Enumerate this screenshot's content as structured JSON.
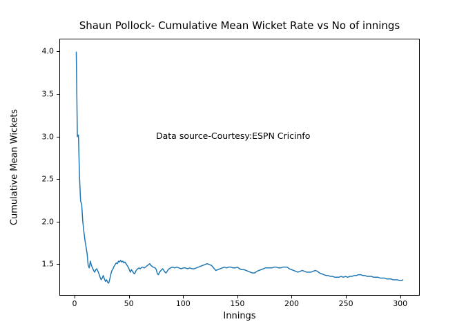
{
  "chart_data": {
    "type": "line",
    "title": "Shaun Pollock- Cumulative Mean Wicket Rate vs No of innings",
    "xlabel": "Innings",
    "ylabel": "Cumulative Mean Wickets",
    "annotation": "Data source-Courtesy:ESPN Cricinfo",
    "grid": false,
    "legend": null,
    "xlim": [
      -14,
      318
    ],
    "ylim": [
      1.13,
      4.15
    ],
    "x_ticks": [
      0,
      50,
      100,
      150,
      200,
      250,
      300
    ],
    "y_ticks": [
      1.5,
      2.0,
      2.5,
      3.0,
      3.5,
      4.0
    ],
    "line_color": "#1f77b4",
    "background_color": "#ffffff",
    "series": [
      {
        "name": "Cumulative Mean Wickets",
        "color": "#1f77b4",
        "points": [
          [
            1,
            4.0
          ],
          [
            2,
            3.0
          ],
          [
            3,
            3.02
          ],
          [
            4,
            2.52
          ],
          [
            5,
            2.24
          ],
          [
            6,
            2.2
          ],
          [
            7,
            2.0
          ],
          [
            8,
            1.88
          ],
          [
            9,
            1.78
          ],
          [
            10,
            1.7
          ],
          [
            11,
            1.62
          ],
          [
            12,
            1.48
          ],
          [
            13,
            1.45
          ],
          [
            14,
            1.53
          ],
          [
            15,
            1.48
          ],
          [
            16,
            1.45
          ],
          [
            17,
            1.42
          ],
          [
            18,
            1.4
          ],
          [
            19,
            1.43
          ],
          [
            20,
            1.44
          ],
          [
            21,
            1.41
          ],
          [
            22,
            1.38
          ],
          [
            23,
            1.34
          ],
          [
            24,
            1.31
          ],
          [
            25,
            1.33
          ],
          [
            26,
            1.36
          ],
          [
            27,
            1.32
          ],
          [
            28,
            1.29
          ],
          [
            29,
            1.31
          ],
          [
            30,
            1.28
          ],
          [
            31,
            1.27
          ],
          [
            32,
            1.32
          ],
          [
            33,
            1.38
          ],
          [
            34,
            1.42
          ],
          [
            35,
            1.44
          ],
          [
            36,
            1.47
          ],
          [
            37,
            1.49
          ],
          [
            38,
            1.51
          ],
          [
            39,
            1.5
          ],
          [
            40,
            1.53
          ],
          [
            41,
            1.52
          ],
          [
            42,
            1.54
          ],
          [
            43,
            1.52
          ],
          [
            44,
            1.53
          ],
          [
            45,
            1.51
          ],
          [
            46,
            1.52
          ],
          [
            47,
            1.5
          ],
          [
            48,
            1.48
          ],
          [
            49,
            1.46
          ],
          [
            50,
            1.43
          ],
          [
            51,
            1.4
          ],
          [
            52,
            1.43
          ],
          [
            53,
            1.41
          ],
          [
            54,
            1.39
          ],
          [
            55,
            1.38
          ],
          [
            56,
            1.41
          ],
          [
            57,
            1.43
          ],
          [
            58,
            1.44
          ],
          [
            59,
            1.45
          ],
          [
            60,
            1.44
          ],
          [
            62,
            1.46
          ],
          [
            64,
            1.45
          ],
          [
            66,
            1.47
          ],
          [
            68,
            1.49
          ],
          [
            69,
            1.5
          ],
          [
            70,
            1.48
          ],
          [
            72,
            1.46
          ],
          [
            74,
            1.45
          ],
          [
            75,
            1.43
          ],
          [
            76,
            1.38
          ],
          [
            77,
            1.37
          ],
          [
            78,
            1.4
          ],
          [
            80,
            1.43
          ],
          [
            81,
            1.44
          ],
          [
            82,
            1.42
          ],
          [
            83,
            1.4
          ],
          [
            84,
            1.39
          ],
          [
            85,
            1.41
          ],
          [
            86,
            1.43
          ],
          [
            88,
            1.45
          ],
          [
            90,
            1.46
          ],
          [
            92,
            1.45
          ],
          [
            94,
            1.46
          ],
          [
            96,
            1.45
          ],
          [
            98,
            1.44
          ],
          [
            100,
            1.45
          ],
          [
            102,
            1.45
          ],
          [
            104,
            1.44
          ],
          [
            106,
            1.45
          ],
          [
            108,
            1.44
          ],
          [
            110,
            1.44
          ],
          [
            112,
            1.45
          ],
          [
            114,
            1.46
          ],
          [
            116,
            1.47
          ],
          [
            118,
            1.48
          ],
          [
            120,
            1.49
          ],
          [
            122,
            1.5
          ],
          [
            124,
            1.49
          ],
          [
            126,
            1.48
          ],
          [
            128,
            1.45
          ],
          [
            130,
            1.42
          ],
          [
            132,
            1.43
          ],
          [
            134,
            1.44
          ],
          [
            136,
            1.45
          ],
          [
            138,
            1.46
          ],
          [
            140,
            1.45
          ],
          [
            142,
            1.46
          ],
          [
            144,
            1.46
          ],
          [
            146,
            1.45
          ],
          [
            148,
            1.45
          ],
          [
            150,
            1.46
          ],
          [
            152,
            1.44
          ],
          [
            154,
            1.43
          ],
          [
            156,
            1.43
          ],
          [
            158,
            1.42
          ],
          [
            160,
            1.41
          ],
          [
            162,
            1.4
          ],
          [
            164,
            1.39
          ],
          [
            166,
            1.39
          ],
          [
            168,
            1.41
          ],
          [
            170,
            1.42
          ],
          [
            172,
            1.43
          ],
          [
            174,
            1.44
          ],
          [
            176,
            1.45
          ],
          [
            178,
            1.45
          ],
          [
            180,
            1.45
          ],
          [
            182,
            1.45
          ],
          [
            184,
            1.46
          ],
          [
            186,
            1.46
          ],
          [
            188,
            1.45
          ],
          [
            190,
            1.45
          ],
          [
            192,
            1.46
          ],
          [
            194,
            1.46
          ],
          [
            196,
            1.46
          ],
          [
            198,
            1.44
          ],
          [
            200,
            1.43
          ],
          [
            202,
            1.42
          ],
          [
            204,
            1.41
          ],
          [
            206,
            1.4
          ],
          [
            208,
            1.41
          ],
          [
            210,
            1.42
          ],
          [
            212,
            1.41
          ],
          [
            214,
            1.4
          ],
          [
            216,
            1.4
          ],
          [
            218,
            1.4
          ],
          [
            220,
            1.41
          ],
          [
            222,
            1.42
          ],
          [
            224,
            1.41
          ],
          [
            226,
            1.39
          ],
          [
            228,
            1.38
          ],
          [
            230,
            1.37
          ],
          [
            232,
            1.36
          ],
          [
            234,
            1.36
          ],
          [
            236,
            1.35
          ],
          [
            238,
            1.35
          ],
          [
            240,
            1.34
          ],
          [
            242,
            1.34
          ],
          [
            244,
            1.34
          ],
          [
            246,
            1.35
          ],
          [
            248,
            1.34
          ],
          [
            250,
            1.35
          ],
          [
            252,
            1.34
          ],
          [
            254,
            1.35
          ],
          [
            256,
            1.35
          ],
          [
            258,
            1.36
          ],
          [
            260,
            1.36
          ],
          [
            262,
            1.37
          ],
          [
            264,
            1.37
          ],
          [
            266,
            1.36
          ],
          [
            268,
            1.36
          ],
          [
            270,
            1.35
          ],
          [
            272,
            1.35
          ],
          [
            274,
            1.35
          ],
          [
            276,
            1.34
          ],
          [
            278,
            1.34
          ],
          [
            280,
            1.34
          ],
          [
            282,
            1.33
          ],
          [
            284,
            1.33
          ],
          [
            286,
            1.33
          ],
          [
            288,
            1.32
          ],
          [
            290,
            1.32
          ],
          [
            292,
            1.32
          ],
          [
            294,
            1.31
          ],
          [
            296,
            1.31
          ],
          [
            298,
            1.31
          ],
          [
            300,
            1.3
          ],
          [
            302,
            1.3
          ],
          [
            303,
            1.31
          ]
        ]
      }
    ]
  }
}
